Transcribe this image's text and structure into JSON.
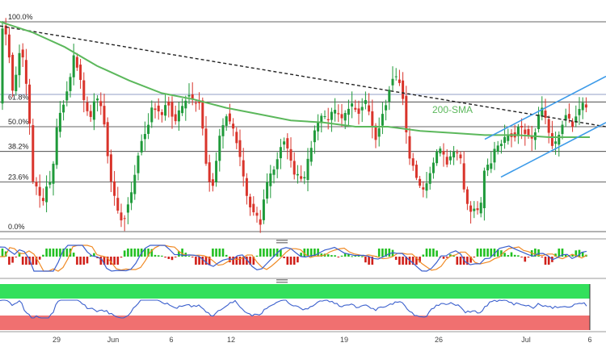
{
  "chart_data": {
    "type": "candlestick",
    "colors": {
      "up": "#1f9a3a",
      "down": "#d9342b",
      "sma": "#5cb85c",
      "channel": "#3d9be9",
      "trendline": "#222222",
      "fib_line": "#333333",
      "macd_line": "#3a5fcd",
      "signal_line": "#f08a24",
      "hist_pos": "#22c022",
      "hist_neg": "#d0201a",
      "rsi_line": "#3a5fcd",
      "rsi_over": "#33e05c",
      "rsi_under": "#f07070"
    },
    "fib_levels": [
      {
        "label": "100.0%",
        "level": 100.0
      },
      {
        "label": "61.8%",
        "level": 61.8
      },
      {
        "label": "50.0%",
        "level": 50.0
      },
      {
        "label": "38.2%",
        "level": 38.2
      },
      {
        "label": "23.6%",
        "level": 23.6
      },
      {
        "label": "0.0%",
        "level": 0.0
      }
    ],
    "xticks": [
      "29",
      "Jun",
      "6",
      "12",
      "19",
      "26",
      "Jul",
      "6"
    ],
    "annotations": {
      "sma_label": "200-SMA"
    },
    "panels": [
      "price",
      "macd",
      "rsi"
    ]
  }
}
